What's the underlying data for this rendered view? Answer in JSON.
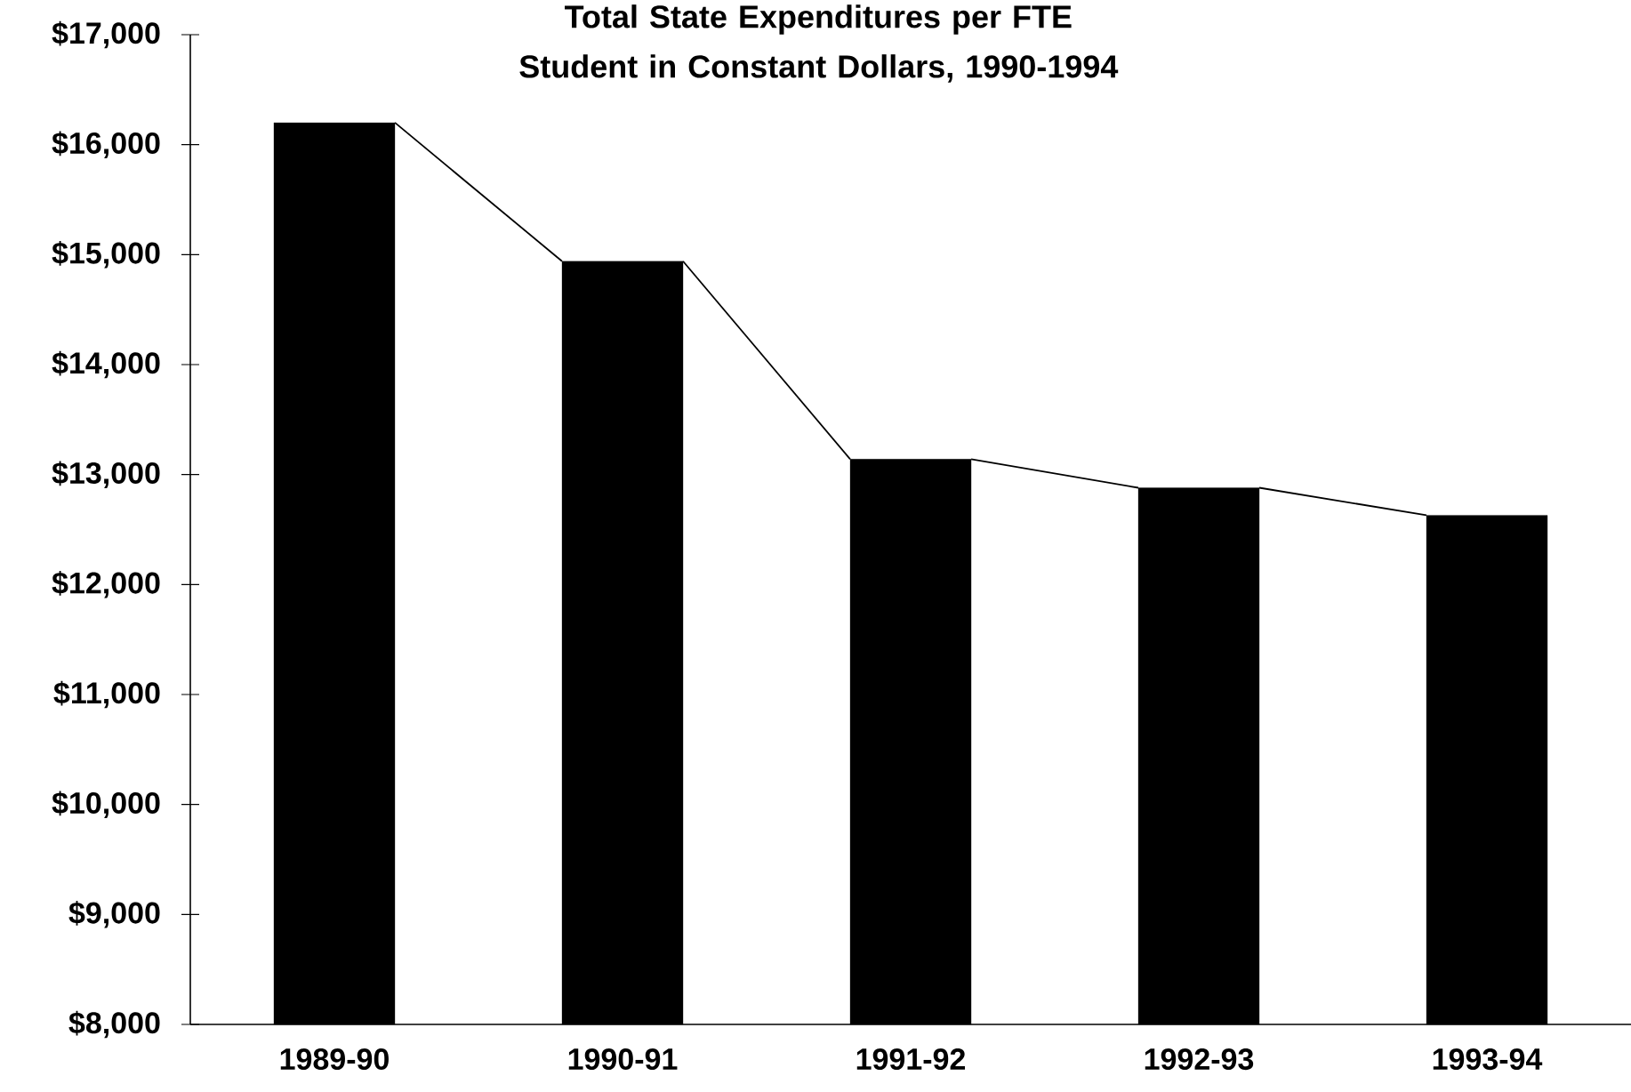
{
  "chart_data": {
    "type": "bar",
    "title": "Total State Expenditures per FTE Student in Constant Dollars, 1990-1994",
    "categories": [
      "1989-90",
      "1990-91",
      "1991-92",
      "1992-93",
      "1993-94"
    ],
    "series": [
      {
        "type": "bar",
        "color": "#000000",
        "values": [
          16200,
          14940,
          13140,
          12880,
          12630
        ]
      }
    ],
    "ylim": [
      8000,
      17000
    ],
    "yticks": [
      {
        "value": 8000,
        "label": "$8,000"
      },
      {
        "value": 9000,
        "label": "$9,000"
      },
      {
        "value": 10000,
        "label": "$10,000"
      },
      {
        "value": 11000,
        "label": "$11,000"
      },
      {
        "value": 12000,
        "label": "$12,000"
      },
      {
        "value": 13000,
        "label": "$13,000"
      },
      {
        "value": 14000,
        "label": "$14,000"
      },
      {
        "value": 15000,
        "label": "$15,000"
      },
      {
        "value": 16000,
        "label": "$16,000"
      },
      {
        "value": 17000,
        "label": "$17,000"
      }
    ]
  }
}
